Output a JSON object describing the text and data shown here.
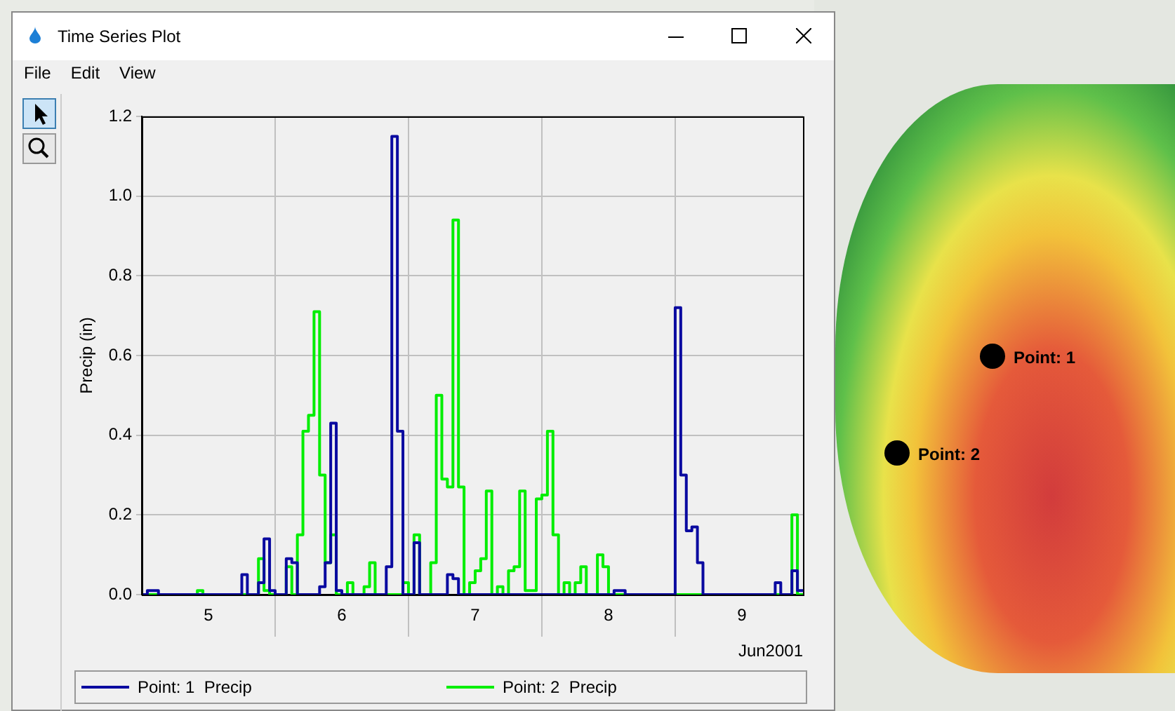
{
  "chart_data": {
    "type": "step",
    "title": "Time Series Plot",
    "xlabel": "Jun2001",
    "ylabel": "Precip (in)",
    "annotations": [
      "File",
      "Edit",
      "View",
      "Point: 1",
      "Point: 2"
    ],
    "xlim": [
      "2001-06-05T00:00",
      "2001-06-09T23:00"
    ],
    "xticks": [
      {
        "value": "2001-06-05T12:00",
        "label": "5"
      },
      {
        "value": "2001-06-06T00:00",
        "label": null
      },
      {
        "value": "2001-06-06T12:00",
        "label": "6"
      },
      {
        "value": "2001-06-07T00:00",
        "label": null
      },
      {
        "value": "2001-06-07T12:00",
        "label": "7"
      },
      {
        "value": "2001-06-08T00:00",
        "label": null
      },
      {
        "value": "2001-06-08T12:00",
        "label": "8"
      },
      {
        "value": "2001-06-09T00:00",
        "label": null
      },
      {
        "value": "2001-06-09T12:00",
        "label": "9"
      }
    ],
    "ylim": [
      0,
      1.2
    ],
    "yticks": [
      {
        "value": 0,
        "label": "0.0"
      },
      0.2,
      0.4,
      0.6,
      0.8,
      {
        "value": 1,
        "label": "1.0"
      },
      1.2
    ],
    "grid": true,
    "legend": "bottom",
    "line_style": "solid",
    "marker": "none",
    "series": [
      {
        "name": "Point: 1  Precip",
        "color": "#0a0aa0",
        "x": [
          "2001-06-05T00:00",
          "2001-06-05T01:00",
          "2001-06-05T03:00",
          "2001-06-05T18:00",
          "2001-06-05T19:00",
          "2001-06-05T21:00",
          "2001-06-05T22:00",
          "2001-06-05T23:00",
          "2001-06-06T00:00",
          "2001-06-06T02:00",
          "2001-06-06T03:00",
          "2001-06-06T04:00",
          "2001-06-06T08:00",
          "2001-06-06T09:00",
          "2001-06-06T10:00",
          "2001-06-06T11:00",
          "2001-06-06T12:00",
          "2001-06-06T20:00",
          "2001-06-06T21:00",
          "2001-06-06T22:00",
          "2001-06-06T23:00",
          "2001-06-07T01:00",
          "2001-06-07T02:00",
          "2001-06-07T07:00",
          "2001-06-07T08:00",
          "2001-06-07T09:00",
          "2001-06-08T13:00",
          "2001-06-08T15:00",
          "2001-06-09T00:00",
          "2001-06-09T01:00",
          "2001-06-09T02:00",
          "2001-06-09T03:00",
          "2001-06-09T04:00",
          "2001-06-09T05:00",
          "2001-06-09T18:00",
          "2001-06-09T19:00",
          "2001-06-09T21:00",
          "2001-06-09T22:00",
          "2001-06-09T23:00"
        ],
        "values": [
          0,
          0.01,
          0,
          0.05,
          0,
          0.03,
          0.14,
          0.01,
          0,
          0.09,
          0.08,
          0,
          0.02,
          0.08,
          0.43,
          0.01,
          0,
          0.07,
          1.15,
          0.41,
          0,
          0.13,
          0,
          0.05,
          0.04,
          0,
          0.01,
          0,
          0.72,
          0.3,
          0.16,
          0.17,
          0.08,
          0,
          0.03,
          0,
          0.06,
          0.01,
          0.01
        ]
      },
      {
        "name": "Point: 2  Precip",
        "color": "#00ee00",
        "x": [
          "2001-06-05T00:00",
          "2001-06-05T10:00",
          "2001-06-05T11:00",
          "2001-06-05T21:00",
          "2001-06-05T22:00",
          "2001-06-05T23:00",
          "2001-06-06T02:00",
          "2001-06-06T03:00",
          "2001-06-06T04:00",
          "2001-06-06T05:00",
          "2001-06-06T06:00",
          "2001-06-06T07:00",
          "2001-06-06T08:00",
          "2001-06-06T09:00",
          "2001-06-06T10:00",
          "2001-06-06T11:00",
          "2001-06-06T13:00",
          "2001-06-06T14:00",
          "2001-06-06T16:00",
          "2001-06-06T17:00",
          "2001-06-06T18:00",
          "2001-06-06T23:00",
          "2001-06-07T00:00",
          "2001-06-07T01:00",
          "2001-06-07T02:00",
          "2001-06-07T04:00",
          "2001-06-07T05:00",
          "2001-06-07T06:00",
          "2001-06-07T07:00",
          "2001-06-07T08:00",
          "2001-06-07T09:00",
          "2001-06-07T10:00",
          "2001-06-07T11:00",
          "2001-06-07T12:00",
          "2001-06-07T13:00",
          "2001-06-07T14:00",
          "2001-06-07T15:00",
          "2001-06-07T16:00",
          "2001-06-07T17:00",
          "2001-06-07T18:00",
          "2001-06-07T19:00",
          "2001-06-07T20:00",
          "2001-06-07T21:00",
          "2001-06-07T23:00",
          "2001-06-08T00:00",
          "2001-06-08T01:00",
          "2001-06-08T02:00",
          "2001-06-08T03:00",
          "2001-06-08T04:00",
          "2001-06-08T05:00",
          "2001-06-08T06:00",
          "2001-06-08T07:00",
          "2001-06-08T08:00",
          "2001-06-08T10:00",
          "2001-06-08T11:00",
          "2001-06-08T12:00",
          "2001-06-09T21:00",
          "2001-06-09T22:00",
          "2001-06-09T23:00"
        ],
        "values": [
          0,
          0.01,
          0,
          0.09,
          0.01,
          0,
          0.07,
          0,
          0.15,
          0.41,
          0.45,
          0.71,
          0.3,
          0.08,
          0.15,
          0,
          0.03,
          0,
          0.02,
          0.08,
          0,
          0.03,
          0,
          0.15,
          0,
          0.08,
          0.5,
          0.29,
          0.27,
          0.94,
          0.27,
          0,
          0.03,
          0.06,
          0.09,
          0.26,
          0,
          0.02,
          0,
          0.06,
          0.07,
          0.26,
          0.01,
          0.24,
          0.25,
          0.41,
          0.15,
          0,
          0.03,
          0,
          0.03,
          0.07,
          0,
          0.1,
          0.07,
          0,
          0.2,
          0,
          0
        ]
      }
    ]
  }
}
